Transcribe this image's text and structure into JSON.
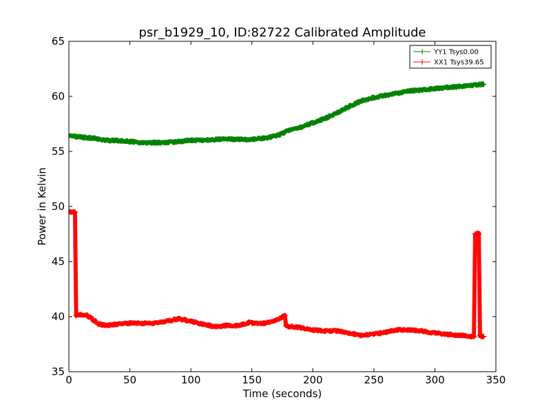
{
  "chart_data": {
    "type": "line",
    "title": "psr_b1929_10, ID:82722 Calibrated Amplitude",
    "xlabel": "Time (seconds)",
    "ylabel": "Power in Kelvin",
    "xlim": [
      0,
      350
    ],
    "ylim": [
      35,
      65
    ],
    "xticks": [
      0,
      50,
      100,
      150,
      200,
      250,
      300,
      350
    ],
    "yticks": [
      35,
      40,
      45,
      50,
      55,
      60,
      65
    ],
    "grid": false,
    "legend_position": "top-right",
    "series": [
      {
        "name": "YY1 Tsys0.00",
        "color": "#008000",
        "marker": "+",
        "x": [
          0,
          10,
          20,
          30,
          40,
          50,
          60,
          70,
          80,
          90,
          100,
          110,
          120,
          130,
          140,
          150,
          160,
          170,
          180,
          190,
          200,
          210,
          220,
          230,
          240,
          250,
          260,
          270,
          280,
          290,
          300,
          310,
          320,
          330,
          340
        ],
        "y": [
          56.4,
          56.3,
          56.2,
          56.0,
          56.0,
          55.9,
          55.8,
          55.8,
          55.8,
          55.9,
          56.0,
          56.0,
          56.1,
          56.1,
          56.1,
          56.1,
          56.2,
          56.4,
          56.9,
          57.2,
          57.6,
          58.0,
          58.5,
          59.1,
          59.6,
          59.9,
          60.1,
          60.3,
          60.5,
          60.6,
          60.7,
          60.8,
          60.9,
          61.0,
          61.1
        ]
      },
      {
        "name": "XX1 Tsys39.65",
        "color": "#ff0000",
        "marker": "+",
        "x": [
          0,
          4,
          5,
          6,
          10,
          15,
          20,
          25,
          30,
          40,
          50,
          60,
          70,
          80,
          90,
          100,
          110,
          120,
          130,
          140,
          148,
          150,
          160,
          170,
          177,
          178,
          180,
          190,
          200,
          210,
          220,
          230,
          240,
          250,
          260,
          270,
          280,
          290,
          300,
          310,
          320,
          330,
          332,
          333,
          334,
          335,
          336,
          337,
          338,
          339,
          340
        ],
        "y": [
          49.5,
          49.5,
          49.5,
          40.1,
          40.2,
          40.1,
          39.7,
          39.3,
          39.2,
          39.3,
          39.4,
          39.4,
          39.4,
          39.6,
          39.8,
          39.6,
          39.3,
          39.1,
          39.2,
          39.2,
          39.5,
          39.4,
          39.4,
          39.7,
          40.1,
          39.2,
          39.1,
          39.0,
          38.8,
          38.7,
          38.7,
          38.5,
          38.3,
          38.4,
          38.6,
          38.8,
          38.8,
          38.7,
          38.5,
          38.4,
          38.3,
          38.2,
          38.2,
          47.5,
          47.5,
          47.6,
          47.5,
          38.3,
          38.2,
          38.2,
          38.2
        ]
      }
    ]
  }
}
